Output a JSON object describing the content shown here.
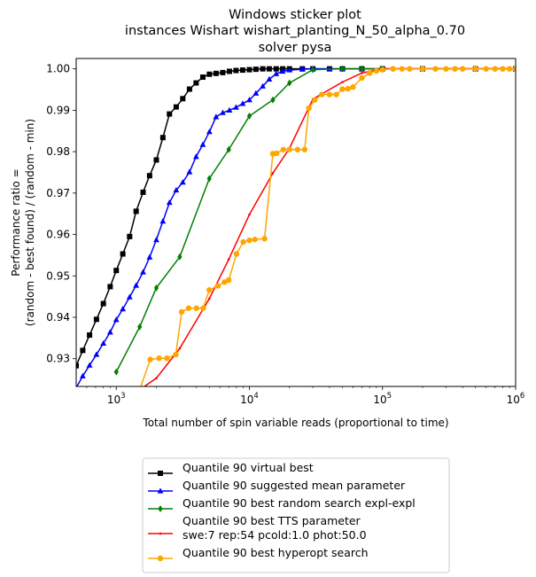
{
  "chart_data": {
    "type": "line",
    "title": [
      "Windows sticker plot",
      "instances Wishart wishart_planting_N_50_alpha_0.70",
      "solver pysa"
    ],
    "xlabel": "Total number of spin variable reads (proportional to time)",
    "ylabel": [
      "Performance ratio =",
      "(random - best found) / (random - min)"
    ],
    "xscale": "log",
    "xlim": [
      500,
      1000000
    ],
    "ylim": [
      0.9233,
      1.0025
    ],
    "xticks": [
      {
        "value": 1000,
        "base": "10",
        "exp": "3"
      },
      {
        "value": 10000,
        "base": "10",
        "exp": "4"
      },
      {
        "value": 100000,
        "base": "10",
        "exp": "5"
      },
      {
        "value": 1000000,
        "base": "10",
        "exp": "6"
      }
    ],
    "yticks": [
      {
        "value": 0.93,
        "label": "0.93"
      },
      {
        "value": 0.94,
        "label": "0.94"
      },
      {
        "value": 0.95,
        "label": "0.95"
      },
      {
        "value": 0.96,
        "label": "0.96"
      },
      {
        "value": 0.97,
        "label": "0.97"
      },
      {
        "value": 0.98,
        "label": "0.98"
      },
      {
        "value": 0.99,
        "label": "0.99"
      },
      {
        "value": 1.0,
        "label": "1.00"
      }
    ],
    "grid": false,
    "legend_position": "below",
    "series": [
      {
        "name": "Quantile 90 virtual best",
        "color": "#000000",
        "marker": "square",
        "x": [
          500,
          560,
          630,
          710,
          800,
          900,
          1000,
          1120,
          1260,
          1410,
          1590,
          1780,
          2000,
          2240,
          2510,
          2820,
          3160,
          3550,
          3980,
          4470,
          5010,
          5620,
          6310,
          7080,
          7940,
          8910,
          10000,
          11200,
          12600,
          14100,
          15900,
          17800,
          20000,
          25000,
          30000,
          40000,
          50000,
          70000,
          100000,
          200000,
          500000,
          1000000
        ],
        "y": [
          0.9283,
          0.932,
          0.9357,
          0.9395,
          0.9433,
          0.9474,
          0.9513,
          0.9553,
          0.9595,
          0.9656,
          0.9702,
          0.9742,
          0.978,
          0.9834,
          0.9891,
          0.9908,
          0.9928,
          0.9951,
          0.9966,
          0.998,
          0.9987,
          0.9989,
          0.9991,
          0.9994,
          0.9996,
          0.9997,
          0.9998,
          0.9999,
          1.0,
          1.0,
          1.0,
          1.0,
          1.0,
          1.0,
          1.0,
          1.0,
          1.0,
          1.0,
          1.0,
          1.0,
          1.0,
          1.0
        ]
      },
      {
        "name": "Quantile 90 suggested mean parameter",
        "color": "#0000ff",
        "marker": "triangle",
        "x": [
          500,
          560,
          630,
          710,
          800,
          900,
          1000,
          1120,
          1260,
          1410,
          1590,
          1780,
          2000,
          2240,
          2510,
          2820,
          3160,
          3550,
          3980,
          4470,
          5010,
          5620,
          6310,
          7080,
          7940,
          8910,
          10000,
          11200,
          12600,
          14100,
          15900,
          17800,
          20000,
          25000,
          30000,
          40000,
          50000,
          70000,
          100000,
          200000,
          500000,
          1000000
        ],
        "y": [
          0.923,
          0.9258,
          0.9284,
          0.931,
          0.9337,
          0.9364,
          0.9394,
          0.942,
          0.9449,
          0.9477,
          0.9509,
          0.9545,
          0.9587,
          0.9632,
          0.9677,
          0.9707,
          0.9726,
          0.9751,
          0.9788,
          0.9817,
          0.9848,
          0.9884,
          0.9894,
          0.99,
          0.9907,
          0.9916,
          0.9925,
          0.9941,
          0.9958,
          0.9975,
          0.9988,
          0.9994,
          0.9997,
          0.9999,
          1.0,
          1.0,
          1.0,
          1.0,
          1.0,
          1.0,
          1.0,
          1.0
        ]
      },
      {
        "name": "Quantile 90  best random search expl-expl",
        "color": "#008000",
        "marker": "diamond",
        "x": [
          1000,
          1500,
          2000,
          3000,
          5000,
          7000,
          10000,
          15000,
          20000,
          30000,
          50000,
          70000,
          100000,
          200000,
          500000,
          1000000
        ],
        "y": [
          0.9268,
          0.9377,
          0.9471,
          0.9546,
          0.9735,
          0.9805,
          0.9886,
          0.9925,
          0.9966,
          0.9998,
          1.0,
          1.0,
          1.0,
          1.0,
          1.0,
          1.0
        ]
      },
      {
        "name": "Quantile 90 best TTS parameter\nswe:7 rep:54 pcold:1.0 phot:50.0",
        "color": "#ff0000",
        "marker": "point",
        "x": [
          1500,
          2000,
          3000,
          5000,
          7000,
          10000,
          15000,
          20000,
          30000,
          50000,
          70000,
          100000,
          200000,
          500000,
          1000000
        ],
        "y": [
          0.9225,
          0.9253,
          0.9325,
          0.9445,
          0.954,
          0.9648,
          0.9748,
          0.9808,
          0.9927,
          0.9968,
          0.999,
          1.0,
          1.0,
          1.0,
          1.0
        ]
      },
      {
        "name": "Quantile 90 best hyperopt search",
        "color": "#ffa500",
        "marker": "circle",
        "x": [
          1500,
          1800,
          2100,
          2400,
          2800,
          3100,
          3500,
          4000,
          4500,
          5000,
          5800,
          6500,
          7000,
          8000,
          9000,
          10000,
          11000,
          13000,
          15000,
          16000,
          18000,
          20000,
          23000,
          26000,
          28000,
          31000,
          35000,
          40000,
          45000,
          50000,
          55000,
          60000,
          70000,
          80000,
          90000,
          100000,
          120000,
          140000,
          160000,
          200000,
          250000,
          300000,
          350000,
          400000,
          500000,
          600000,
          700000,
          800000,
          900000,
          1000000
        ],
        "y": [
          0.9225,
          0.9298,
          0.9301,
          0.9301,
          0.931,
          0.9413,
          0.9422,
          0.9422,
          0.9422,
          0.9466,
          0.9476,
          0.9485,
          0.949,
          0.9553,
          0.9582,
          0.9586,
          0.9588,
          0.959,
          0.9795,
          0.9796,
          0.9805,
          0.9805,
          0.9805,
          0.9805,
          0.9905,
          0.9925,
          0.9938,
          0.9938,
          0.9938,
          0.9951,
          0.9952,
          0.9956,
          0.9978,
          0.999,
          0.9995,
          0.9998,
          1.0,
          1.0,
          1.0,
          1.0,
          1.0,
          1.0,
          1.0,
          1.0,
          1.0,
          1.0,
          1.0,
          1.0,
          1.0,
          1.0
        ]
      }
    ]
  }
}
